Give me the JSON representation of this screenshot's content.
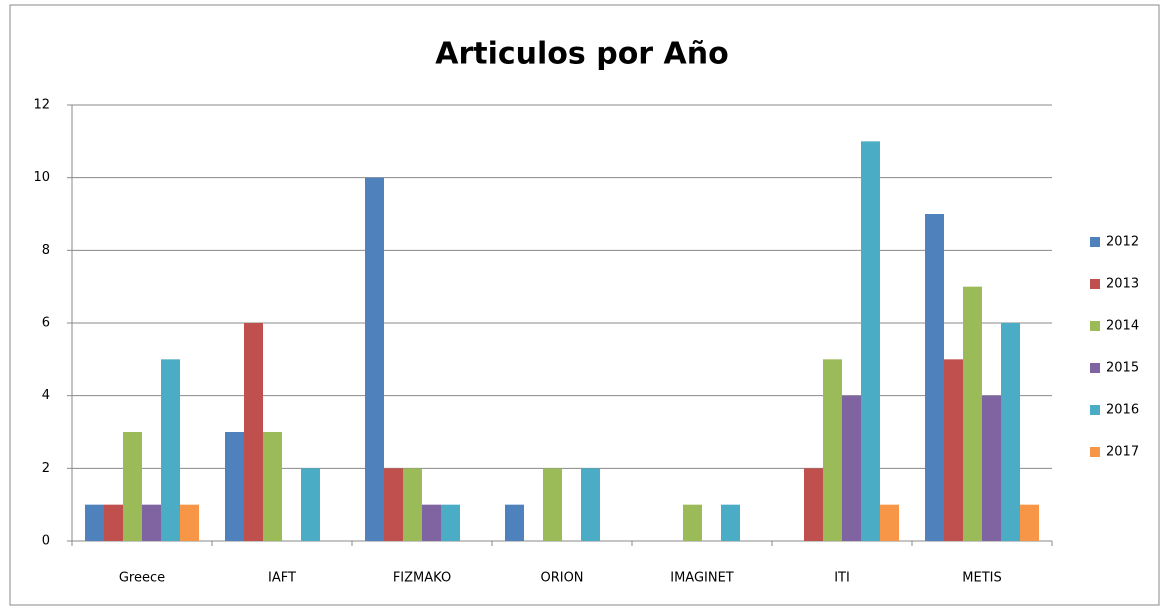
{
  "chart_data": {
    "type": "bar",
    "title": "Articulos por Año",
    "categories": [
      "Greece",
      "IAFT",
      "FIZMAKO",
      "ORION",
      "IMAGINET",
      "ITI",
      "METIS"
    ],
    "series": [
      {
        "name": "2012",
        "color": "#4f81bd",
        "values": [
          1,
          3,
          10,
          1,
          0,
          0,
          9
        ]
      },
      {
        "name": "2013",
        "color": "#c0504d",
        "values": [
          1,
          6,
          2,
          0,
          0,
          2,
          5
        ]
      },
      {
        "name": "2014",
        "color": "#9bbb59",
        "values": [
          3,
          3,
          2,
          2,
          1,
          5,
          7
        ]
      },
      {
        "name": "2015",
        "color": "#8064a2",
        "values": [
          1,
          0,
          1,
          0,
          0,
          4,
          4
        ]
      },
      {
        "name": "2016",
        "color": "#4bacc6",
        "values": [
          5,
          2,
          1,
          2,
          1,
          11,
          6
        ]
      },
      {
        "name": "2017",
        "color": "#f79646",
        "values": [
          1,
          0,
          0,
          0,
          0,
          1,
          1
        ]
      }
    ],
    "ylim": [
      0,
      12
    ],
    "yticks": [
      0,
      2,
      4,
      6,
      8,
      10,
      12
    ],
    "grid": true,
    "legend": "right"
  }
}
